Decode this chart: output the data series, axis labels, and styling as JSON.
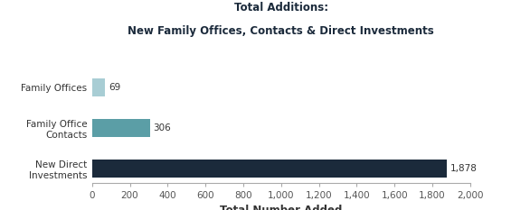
{
  "title_line1": "Total Additions:",
  "title_line2": "New Family Offices, Contacts & Direct Investments",
  "categories": [
    "New Direct\nInvestments",
    "Family Office\nContacts",
    "Family Offices"
  ],
  "values": [
    1878,
    306,
    69
  ],
  "bar_colors": [
    "#1b2a3b",
    "#5b9ea6",
    "#a8cdd4"
  ],
  "xlabel": "Total Number Added",
  "xlim": [
    0,
    2000
  ],
  "xticks": [
    0,
    200,
    400,
    600,
    800,
    1000,
    1200,
    1400,
    1600,
    1800,
    2000
  ],
  "xtick_labels": [
    "0",
    "200",
    "400",
    "600",
    "800",
    "1,000",
    "1,200",
    "1,400",
    "1,600",
    "1,800",
    "2,000"
  ],
  "value_labels": [
    "1,878",
    "306",
    "69"
  ],
  "background_color": "#ffffff",
  "title_fontsize": 8.5,
  "label_fontsize": 7.5,
  "tick_fontsize": 7.5,
  "xlabel_fontsize": 8.5,
  "bar_height": 0.45
}
